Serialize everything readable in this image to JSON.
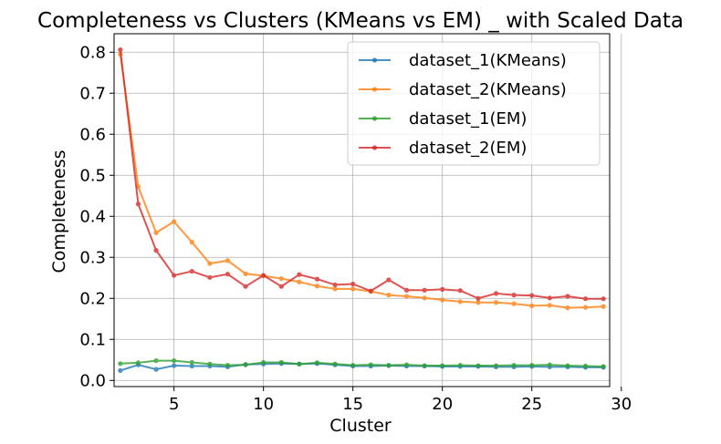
{
  "chart_data": {
    "type": "line",
    "title": "Completeness vs Clusters (KMeans vs EM) _ with Scaled Data",
    "xlabel": "Cluster",
    "ylabel": "Completeness",
    "xlim": [
      1.65,
      29.35
    ],
    "ylim": [
      -0.015,
      0.845
    ],
    "xticks": [
      5,
      10,
      15,
      20,
      25,
      30
    ],
    "yticks": [
      0.0,
      0.1,
      0.2,
      0.3,
      0.4,
      0.5,
      0.6,
      0.7,
      0.8
    ],
    "grid": true,
    "legend_position": "top-right",
    "x": [
      2,
      3,
      4,
      5,
      6,
      7,
      8,
      9,
      10,
      11,
      12,
      13,
      14,
      15,
      16,
      17,
      18,
      19,
      20,
      21,
      22,
      23,
      24,
      25,
      26,
      27,
      28,
      29
    ],
    "series": [
      {
        "name": "dataset_1(KMeans)",
        "color": "#1f77b4",
        "values": [
          0.024,
          0.038,
          0.027,
          0.036,
          0.035,
          0.035,
          0.033,
          0.039,
          0.04,
          0.041,
          0.04,
          0.041,
          0.038,
          0.035,
          0.035,
          0.036,
          0.035,
          0.035,
          0.034,
          0.034,
          0.034,
          0.033,
          0.033,
          0.034,
          0.033,
          0.033,
          0.032,
          0.032
        ]
      },
      {
        "name": "dataset_2(KMeans)",
        "color": "#ff7f0e",
        "values": [
          0.795,
          0.472,
          0.36,
          0.387,
          0.337,
          0.285,
          0.292,
          0.26,
          0.255,
          0.248,
          0.24,
          0.23,
          0.223,
          0.223,
          0.217,
          0.208,
          0.205,
          0.201,
          0.196,
          0.192,
          0.19,
          0.19,
          0.187,
          0.182,
          0.183,
          0.177,
          0.178,
          0.18
        ]
      },
      {
        "name": "dataset_1(EM)",
        "color": "#2ca02c",
        "values": [
          0.041,
          0.043,
          0.048,
          0.048,
          0.044,
          0.04,
          0.037,
          0.038,
          0.044,
          0.044,
          0.04,
          0.043,
          0.04,
          0.037,
          0.038,
          0.037,
          0.038,
          0.036,
          0.036,
          0.037,
          0.036,
          0.036,
          0.037,
          0.037,
          0.038,
          0.036,
          0.035,
          0.034
        ]
      },
      {
        "name": "dataset_2(EM)",
        "color": "#d62728",
        "values": [
          0.806,
          0.43,
          0.317,
          0.256,
          0.266,
          0.251,
          0.259,
          0.229,
          0.256,
          0.229,
          0.258,
          0.247,
          0.233,
          0.235,
          0.218,
          0.245,
          0.22,
          0.22,
          0.222,
          0.219,
          0.2,
          0.212,
          0.208,
          0.207,
          0.201,
          0.205,
          0.199,
          0.199
        ]
      }
    ]
  }
}
